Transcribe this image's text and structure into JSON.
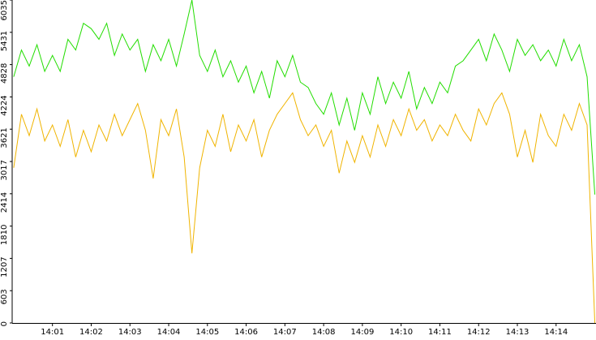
{
  "chart_data": {
    "type": "line",
    "x": [
      840.0,
      840.2,
      840.4,
      840.6,
      840.8,
      841.0,
      841.2,
      841.4,
      841.6,
      841.8,
      842.0,
      842.2,
      842.4,
      842.6,
      842.8,
      843.0,
      843.2,
      843.4,
      843.6,
      843.8,
      844.0,
      844.2,
      844.4,
      844.6,
      844.8,
      845.0,
      845.2,
      845.4,
      845.6,
      845.8,
      846.0,
      846.2,
      846.4,
      846.6,
      846.8,
      847.0,
      847.2,
      847.4,
      847.6,
      847.8,
      848.0,
      848.2,
      848.4,
      848.6,
      848.8,
      849.0,
      849.2,
      849.4,
      849.6,
      849.8,
      850.0,
      850.2,
      850.4,
      850.6,
      850.8,
      851.0,
      851.2,
      851.4,
      851.6,
      851.8,
      852.0,
      852.2,
      852.4,
      852.6,
      852.8,
      853.0,
      853.2,
      853.4,
      853.6,
      853.8,
      854.0,
      854.2,
      854.4,
      854.6,
      854.8,
      855.0
    ],
    "series": [
      {
        "color": "#22dd00",
        "values": [
          4600,
          5100,
          4800,
          5200,
          4700,
          5000,
          4700,
          5300,
          5100,
          5600,
          5500,
          5300,
          5600,
          5000,
          5400,
          5100,
          5300,
          4700,
          5200,
          4900,
          5300,
          4800,
          5400,
          6035,
          5000,
          4700,
          5100,
          4600,
          4900,
          4500,
          4800,
          4300,
          4700,
          4200,
          4900,
          4600,
          5000,
          4500,
          4400,
          4100,
          3900,
          4300,
          3700,
          4200,
          3600,
          4300,
          3900,
          4600,
          4100,
          4500,
          4200,
          4700,
          4000,
          4400,
          4100,
          4500,
          4300,
          4800,
          4900,
          5100,
          5300,
          4900,
          5400,
          5100,
          4700,
          5300,
          5000,
          5200,
          4900,
          5100,
          4800,
          5300,
          4900,
          5200,
          4600,
          2400
        ]
      },
      {
        "color": "#f0b400",
        "values": [
          2900,
          3900,
          3500,
          4000,
          3400,
          3700,
          3300,
          3800,
          3100,
          3600,
          3200,
          3700,
          3400,
          3900,
          3500,
          3800,
          4100,
          3600,
          2700,
          3800,
          3500,
          4000,
          3100,
          1300,
          2900,
          3600,
          3300,
          3900,
          3200,
          3700,
          3400,
          3800,
          3100,
          3600,
          3900,
          4100,
          4300,
          3800,
          3500,
          3700,
          3300,
          3600,
          2800,
          3400,
          3000,
          3500,
          3100,
          3700,
          3300,
          3800,
          3500,
          4000,
          3600,
          3800,
          3400,
          3700,
          3500,
          3900,
          3600,
          3400,
          4000,
          3700,
          4100,
          4300,
          3900,
          3100,
          3600,
          3000,
          3900,
          3500,
          3300,
          3900,
          3600,
          4100,
          3700,
          0
        ]
      }
    ],
    "xlim": [
      839.96,
      855.03
    ],
    "xticks": [
      {
        "value": 841,
        "label": "14:01"
      },
      {
        "value": 842,
        "label": "14:02"
      },
      {
        "value": 843,
        "label": "14:03"
      },
      {
        "value": 844,
        "label": "14:04"
      },
      {
        "value": 845,
        "label": "14:05"
      },
      {
        "value": 846,
        "label": "14:06"
      },
      {
        "value": 847,
        "label": "14:07"
      },
      {
        "value": 848,
        "label": "14:08"
      },
      {
        "value": 849,
        "label": "14:09"
      },
      {
        "value": 850,
        "label": "14:10"
      },
      {
        "value": 851,
        "label": "14:11"
      },
      {
        "value": 852,
        "label": "14:12"
      },
      {
        "value": 853,
        "label": "14:13"
      },
      {
        "value": 854,
        "label": "14:14"
      }
    ],
    "ylim": [
      0,
      6035
    ],
    "yticks": [
      0,
      603,
      1207,
      1810,
      2414,
      3017,
      3621,
      4224,
      4828,
      5431,
      6035
    ]
  }
}
